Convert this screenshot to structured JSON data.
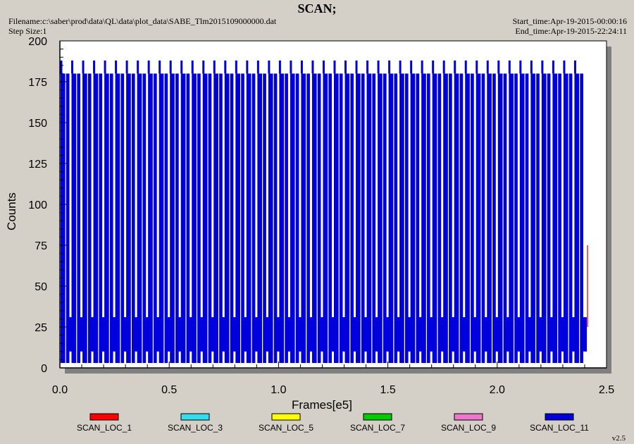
{
  "header": {
    "title": "SCAN;",
    "filename": "Filename:c:\\saber\\prod\\data\\QL\\data\\plot_data\\SABE_Tlm2015109000000.dat",
    "step_size": "Step Size:1",
    "start_time": "Start_time:Apr-19-2015-00:00:16",
    "end_time": "End_time:Apr-19-2015-22:24:11"
  },
  "version": "v2.5",
  "chart_data": {
    "type": "line",
    "title": "SCAN;",
    "xlabel": "Frames[e5]",
    "ylabel": "Counts",
    "xlim": [
      0,
      2.5
    ],
    "ylim": [
      0,
      200
    ],
    "x_ticks": [
      "0.0",
      "0.5",
      "1.0",
      "1.5",
      "2.0",
      "2.5"
    ],
    "y_ticks": [
      "0",
      "25",
      "50",
      "75",
      "100",
      "125",
      "150",
      "175",
      "200"
    ],
    "x_tick_values": [
      0,
      0.5,
      1.0,
      1.5,
      2.0,
      2.5
    ],
    "y_tick_values": [
      0,
      25,
      50,
      75,
      100,
      125,
      150,
      175,
      200
    ],
    "legend_placement": "bottom",
    "series": [
      {
        "name": "SCAN_LOC_1",
        "color": "#ff0000"
      },
      {
        "name": "SCAN_LOC_3",
        "color": "#33ddee"
      },
      {
        "name": "SCAN_LOC_5",
        "color": "#ffff00"
      },
      {
        "name": "SCAN_LOC_7",
        "color": "#00cc00"
      },
      {
        "name": "SCAN_LOC_9",
        "color": "#ee77cc"
      },
      {
        "name": "SCAN_LOC_11",
        "color": "#0000dd",
        "x_range": [
          0.0,
          2.41
        ],
        "scan_period": 0.05,
        "scans_per_period": 2,
        "scan_max": 180,
        "alternate_max": 188,
        "scan_min": 3,
        "baseline_range": [
          10,
          31
        ]
      }
    ]
  }
}
